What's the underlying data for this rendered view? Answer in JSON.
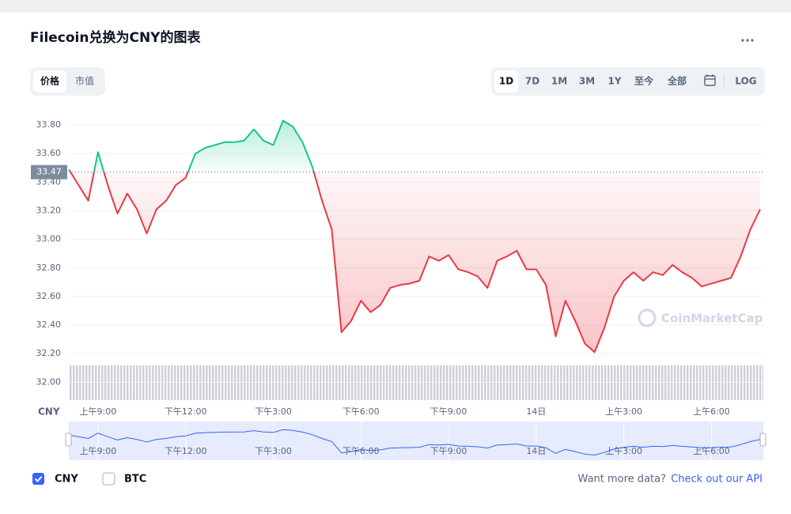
{
  "header": {
    "title": "Filecoin兑换为CNY的图表",
    "menu": "..."
  },
  "tabs": [
    "价格",
    "市值"
  ],
  "ranges": [
    "1D",
    "7D",
    "1M",
    "3M",
    "1Y",
    "至今",
    "全部"
  ],
  "log_button": "LOG",
  "chart_data": {
    "type": "line",
    "categories": [
      null,
      null,
      null,
      "上午9:00",
      null,
      null,
      null,
      null,
      null,
      null,
      null,
      null,
      "下午12:00",
      null,
      null,
      null,
      null,
      null,
      null,
      null,
      null,
      "下午3:00",
      null,
      null,
      null,
      null,
      null,
      null,
      null,
      null,
      "下午6:00",
      null,
      null,
      null,
      null,
      null,
      null,
      null,
      null,
      "下午9:00",
      null,
      null,
      null,
      null,
      null,
      null,
      null,
      null,
      "14日",
      null,
      null,
      null,
      null,
      null,
      null,
      null,
      null,
      "上午3:00",
      null,
      null,
      null,
      null,
      null,
      null,
      null,
      null,
      "上午6:00",
      null,
      null,
      null,
      null,
      null
    ],
    "series": [
      {
        "name": "CNY",
        "color": "#ea3943",
        "values": [
          33.49,
          33.38,
          33.27,
          33.61,
          33.38,
          33.18,
          33.32,
          33.21,
          33.04,
          33.21,
          33.27,
          33.38,
          33.43,
          33.6,
          33.64,
          33.66,
          33.68,
          33.68,
          33.69,
          33.77,
          33.69,
          33.66,
          33.83,
          33.79,
          33.68,
          33.51,
          33.27,
          33.07,
          32.35,
          32.43,
          32.57,
          32.49,
          32.54,
          32.66,
          32.68,
          32.69,
          32.71,
          32.88,
          32.85,
          32.89,
          32.79,
          32.77,
          32.74,
          32.66,
          32.85,
          32.88,
          32.92,
          32.79,
          32.79,
          32.68,
          32.32,
          32.57,
          32.43,
          32.27,
          32.21,
          32.38,
          32.6,
          32.71,
          32.77,
          32.71,
          32.77,
          32.75,
          32.82,
          32.77,
          32.73,
          32.67,
          32.69,
          32.71,
          32.73,
          32.88,
          33.07,
          33.21
        ]
      }
    ],
    "up_color": "#16c784",
    "reference": 33.47,
    "ylim": [
      31.88,
      33.9
    ],
    "yticks": [
      {
        "value": 32,
        "label": "32.00"
      },
      {
        "value": 32.2,
        "label": "32.20"
      },
      {
        "value": 32.4,
        "label": "32.40"
      },
      {
        "value": 32.6,
        "label": "32.60"
      },
      {
        "value": 32.8,
        "label": "32.80"
      },
      {
        "value": 33,
        "label": "33.00"
      },
      {
        "value": 33.2,
        "label": "33.20"
      },
      {
        "value": 33.4,
        "label": "33.40"
      },
      {
        "value": 33.6,
        "label": "33.60"
      },
      {
        "value": 33.8,
        "label": "33.80"
      }
    ],
    "grid": true,
    "watermark": "CoinMarketCap"
  },
  "footer": {
    "other_option": "BTC",
    "prompt": "Want more data?",
    "link": "Check out our API"
  }
}
